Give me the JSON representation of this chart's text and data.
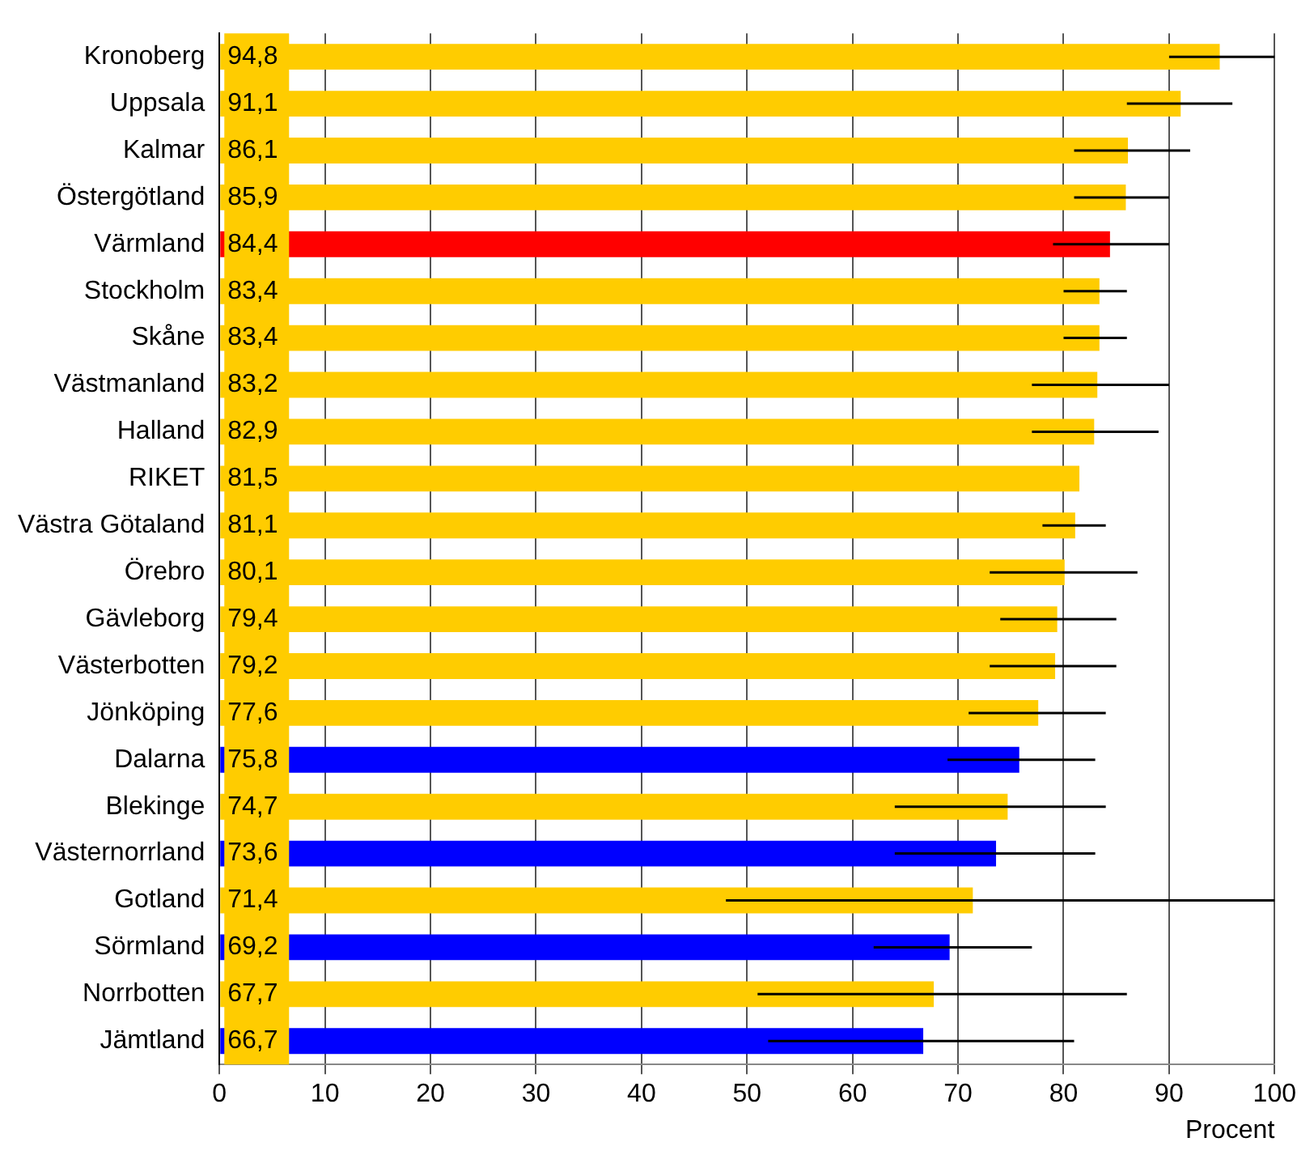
{
  "chart_data": {
    "type": "bar",
    "orientation": "horizontal",
    "xlabel": "Procent",
    "categories": [
      "Kronoberg",
      "Uppsala",
      "Kalmar",
      "Östergötland",
      "Värmland",
      "Stockholm",
      "Skåne",
      "Västmanland",
      "Halland",
      "RIKET",
      "Västra Götaland",
      "Örebro",
      "Gävleborg",
      "Västerbotten",
      "Jönköping",
      "Dalarna",
      "Blekinge",
      "Västernorrland",
      "Gotland",
      "Sörmland",
      "Norrbotten",
      "Jämtland"
    ],
    "values": [
      94.8,
      91.1,
      86.1,
      85.9,
      84.4,
      83.4,
      83.4,
      83.2,
      82.9,
      81.5,
      81.1,
      80.1,
      79.4,
      79.2,
      77.6,
      75.8,
      74.7,
      73.6,
      71.4,
      69.2,
      67.7,
      66.7
    ],
    "colors": [
      "#ffcc00",
      "#ffcc00",
      "#ffcc00",
      "#ffcc00",
      "#ff0000",
      "#ffcc00",
      "#ffcc00",
      "#ffcc00",
      "#ffcc00",
      "#ffcc00",
      "#ffcc00",
      "#ffcc00",
      "#ffcc00",
      "#ffcc00",
      "#ffcc00",
      "#0000ff",
      "#ffcc00",
      "#0000ff",
      "#ffcc00",
      "#0000ff",
      "#ffcc00",
      "#0000ff"
    ],
    "errors": [
      [
        90,
        100
      ],
      [
        86,
        96
      ],
      [
        81,
        92
      ],
      [
        81,
        90
      ],
      [
        79,
        90
      ],
      [
        80,
        86
      ],
      [
        80,
        86
      ],
      [
        77,
        90
      ],
      [
        77,
        89
      ],
      null,
      [
        78,
        84
      ],
      [
        73,
        87
      ],
      [
        74,
        85
      ],
      [
        73,
        85
      ],
      [
        71,
        84
      ],
      [
        69,
        83
      ],
      [
        64,
        84
      ],
      [
        64,
        83
      ],
      [
        48,
        100
      ],
      [
        62,
        77
      ],
      [
        51,
        86
      ],
      [
        52,
        81
      ]
    ],
    "value_labels": [
      "94,8",
      "91,1",
      "86,1",
      "85,9",
      "84,4",
      "83,4",
      "83,4",
      "83,2",
      "82,9",
      "81,5",
      "81,1",
      "80,1",
      "79,4",
      "79,2",
      "77,6",
      "75,8",
      "74,7",
      "73,6",
      "71,4",
      "69,2",
      "67,7",
      "66,7"
    ],
    "xlim": [
      0,
      100
    ],
    "xticks": [
      0,
      10,
      20,
      30,
      40,
      50,
      60,
      70,
      80,
      90,
      100
    ],
    "grid": "x",
    "legend": false
  }
}
